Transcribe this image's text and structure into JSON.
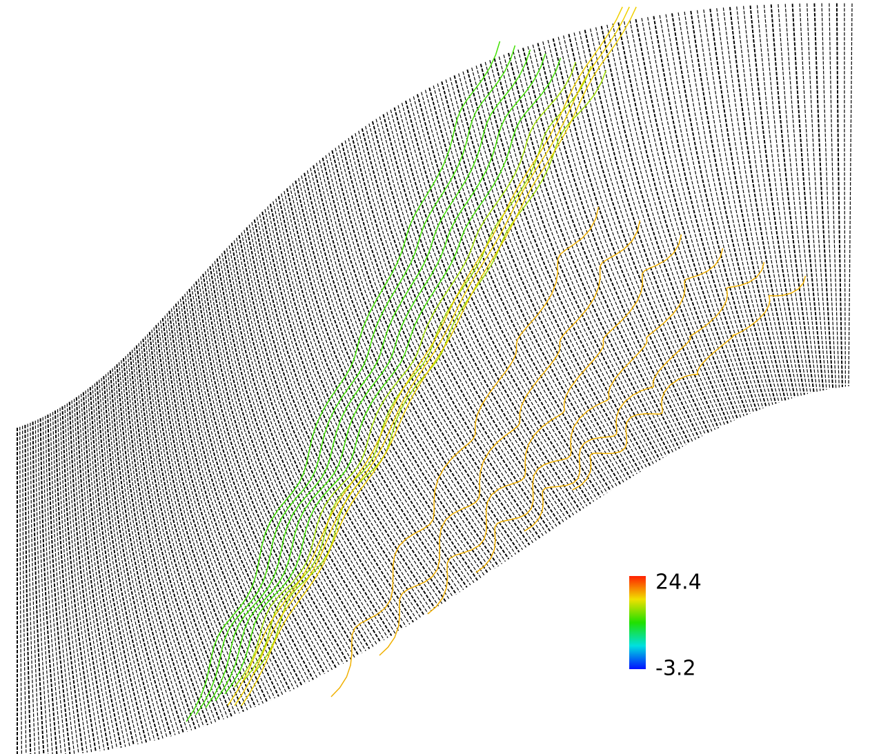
{
  "colorbar": {
    "max": 24.4,
    "min": -3.2
  }
}
